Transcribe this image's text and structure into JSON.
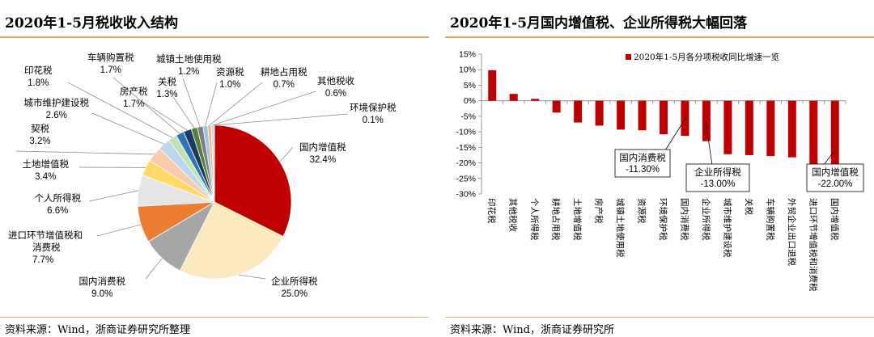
{
  "left_panel": {
    "title": "2020年1-5月税收收入结构",
    "source": "资料来源：Wind，浙商证券研究所整理"
  },
  "right_panel": {
    "title": "2020年1-5月国内增值税、企业所得税大幅回落",
    "source": "资料来源：Wind，浙商证券研究所"
  },
  "colors": {
    "accent_rule": "#f0a35a",
    "bar": "#c00000"
  },
  "chart_data": [
    {
      "type": "pie",
      "title": "2020年1-5月税收收入结构",
      "unit": "%",
      "slices": [
        {
          "name": "国内增值税",
          "value": 32.4,
          "label": "32.4%",
          "color": "#c00000"
        },
        {
          "name": "企业所得税",
          "value": 25.0,
          "label": "25.0%",
          "color": "#fde9c0"
        },
        {
          "name": "国内消费税",
          "value": 9.0,
          "label": "9.0%",
          "color": "#a6a6a6"
        },
        {
          "name": "进口环节增值税和消费税",
          "value": 7.7,
          "label": "7.7%",
          "color": "#ed7d31"
        },
        {
          "name": "个人所得税",
          "value": 6.6,
          "label": "6.6%",
          "color": "#e5e5e5"
        },
        {
          "name": "土地增值税",
          "value": 3.4,
          "label": "3.4%",
          "color": "#ffd966"
        },
        {
          "name": "契税",
          "value": 3.2,
          "label": "3.2%",
          "color": "#f8cbad"
        },
        {
          "name": "城市维护建设税",
          "value": 2.6,
          "label": "2.6%",
          "color": "#bdd7ee"
        },
        {
          "name": "印花税",
          "value": 1.8,
          "label": "1.8%",
          "color": "#c5e0b4"
        },
        {
          "name": "车辆购置税",
          "value": 1.7,
          "label": "1.7%",
          "color": "#2e75b6"
        },
        {
          "name": "房产税",
          "value": 1.7,
          "label": "1.7%",
          "color": "#1f3864"
        },
        {
          "name": "关税",
          "value": 1.3,
          "label": "1.3%",
          "color": "#548235"
        },
        {
          "name": "城镇土地使用税",
          "value": 1.2,
          "label": "1.2%",
          "color": "#7f7f7f"
        },
        {
          "name": "资源税",
          "value": 1.0,
          "label": "1.0%",
          "color": "#9dc3e6"
        },
        {
          "name": "耕地占用税",
          "value": 0.7,
          "label": "0.7%",
          "color": "#f4b183"
        },
        {
          "name": "其他税收",
          "value": 0.6,
          "label": "0.6%",
          "color": "#d9d9d9"
        },
        {
          "name": "环境保护税",
          "value": 0.1,
          "label": "0.1%",
          "color": "#843c0c"
        }
      ]
    },
    {
      "type": "bar",
      "legend": "2020年1-5月各分项税收同比增速一览",
      "unit": "%",
      "ylim": [
        -30,
        15
      ],
      "yticks": [
        15,
        10,
        5,
        0,
        -5,
        -10,
        -15,
        -20,
        -25,
        -30
      ],
      "ytick_labels": [
        "15%",
        "10%",
        "5%",
        "0%",
        "-5%",
        "-10%",
        "-15%",
        "-20%",
        "-25%",
        "-30%"
      ],
      "categories": [
        "印花税",
        "其他税收",
        "个人所得税",
        "耕地占用税",
        "土地增值税",
        "房产税",
        "城镇土地使用税",
        "资源税",
        "环境保护税",
        "国内消费税",
        "企业所得税",
        "城市维护建设税",
        "关税",
        "车辆购置税",
        "外贸企业出口退税",
        "进口环节增值税和消费税",
        "国内增值税"
      ],
      "values": [
        9.8,
        2.2,
        0.6,
        -3.8,
        -7.0,
        -8.0,
        -9.3,
        -9.5,
        -10.8,
        -11.3,
        -13.0,
        -17.2,
        -17.5,
        -17.8,
        -18.2,
        -20.5,
        -22.0
      ],
      "annotations": [
        {
          "category": "国内消费税",
          "name": "国内消费税",
          "value": "-11.30%"
        },
        {
          "category": "企业所得税",
          "name": "企业所得税",
          "value": "-13.00%"
        },
        {
          "category": "国内增值税",
          "name": "国内增值税",
          "value": "-22.00%"
        }
      ]
    }
  ]
}
